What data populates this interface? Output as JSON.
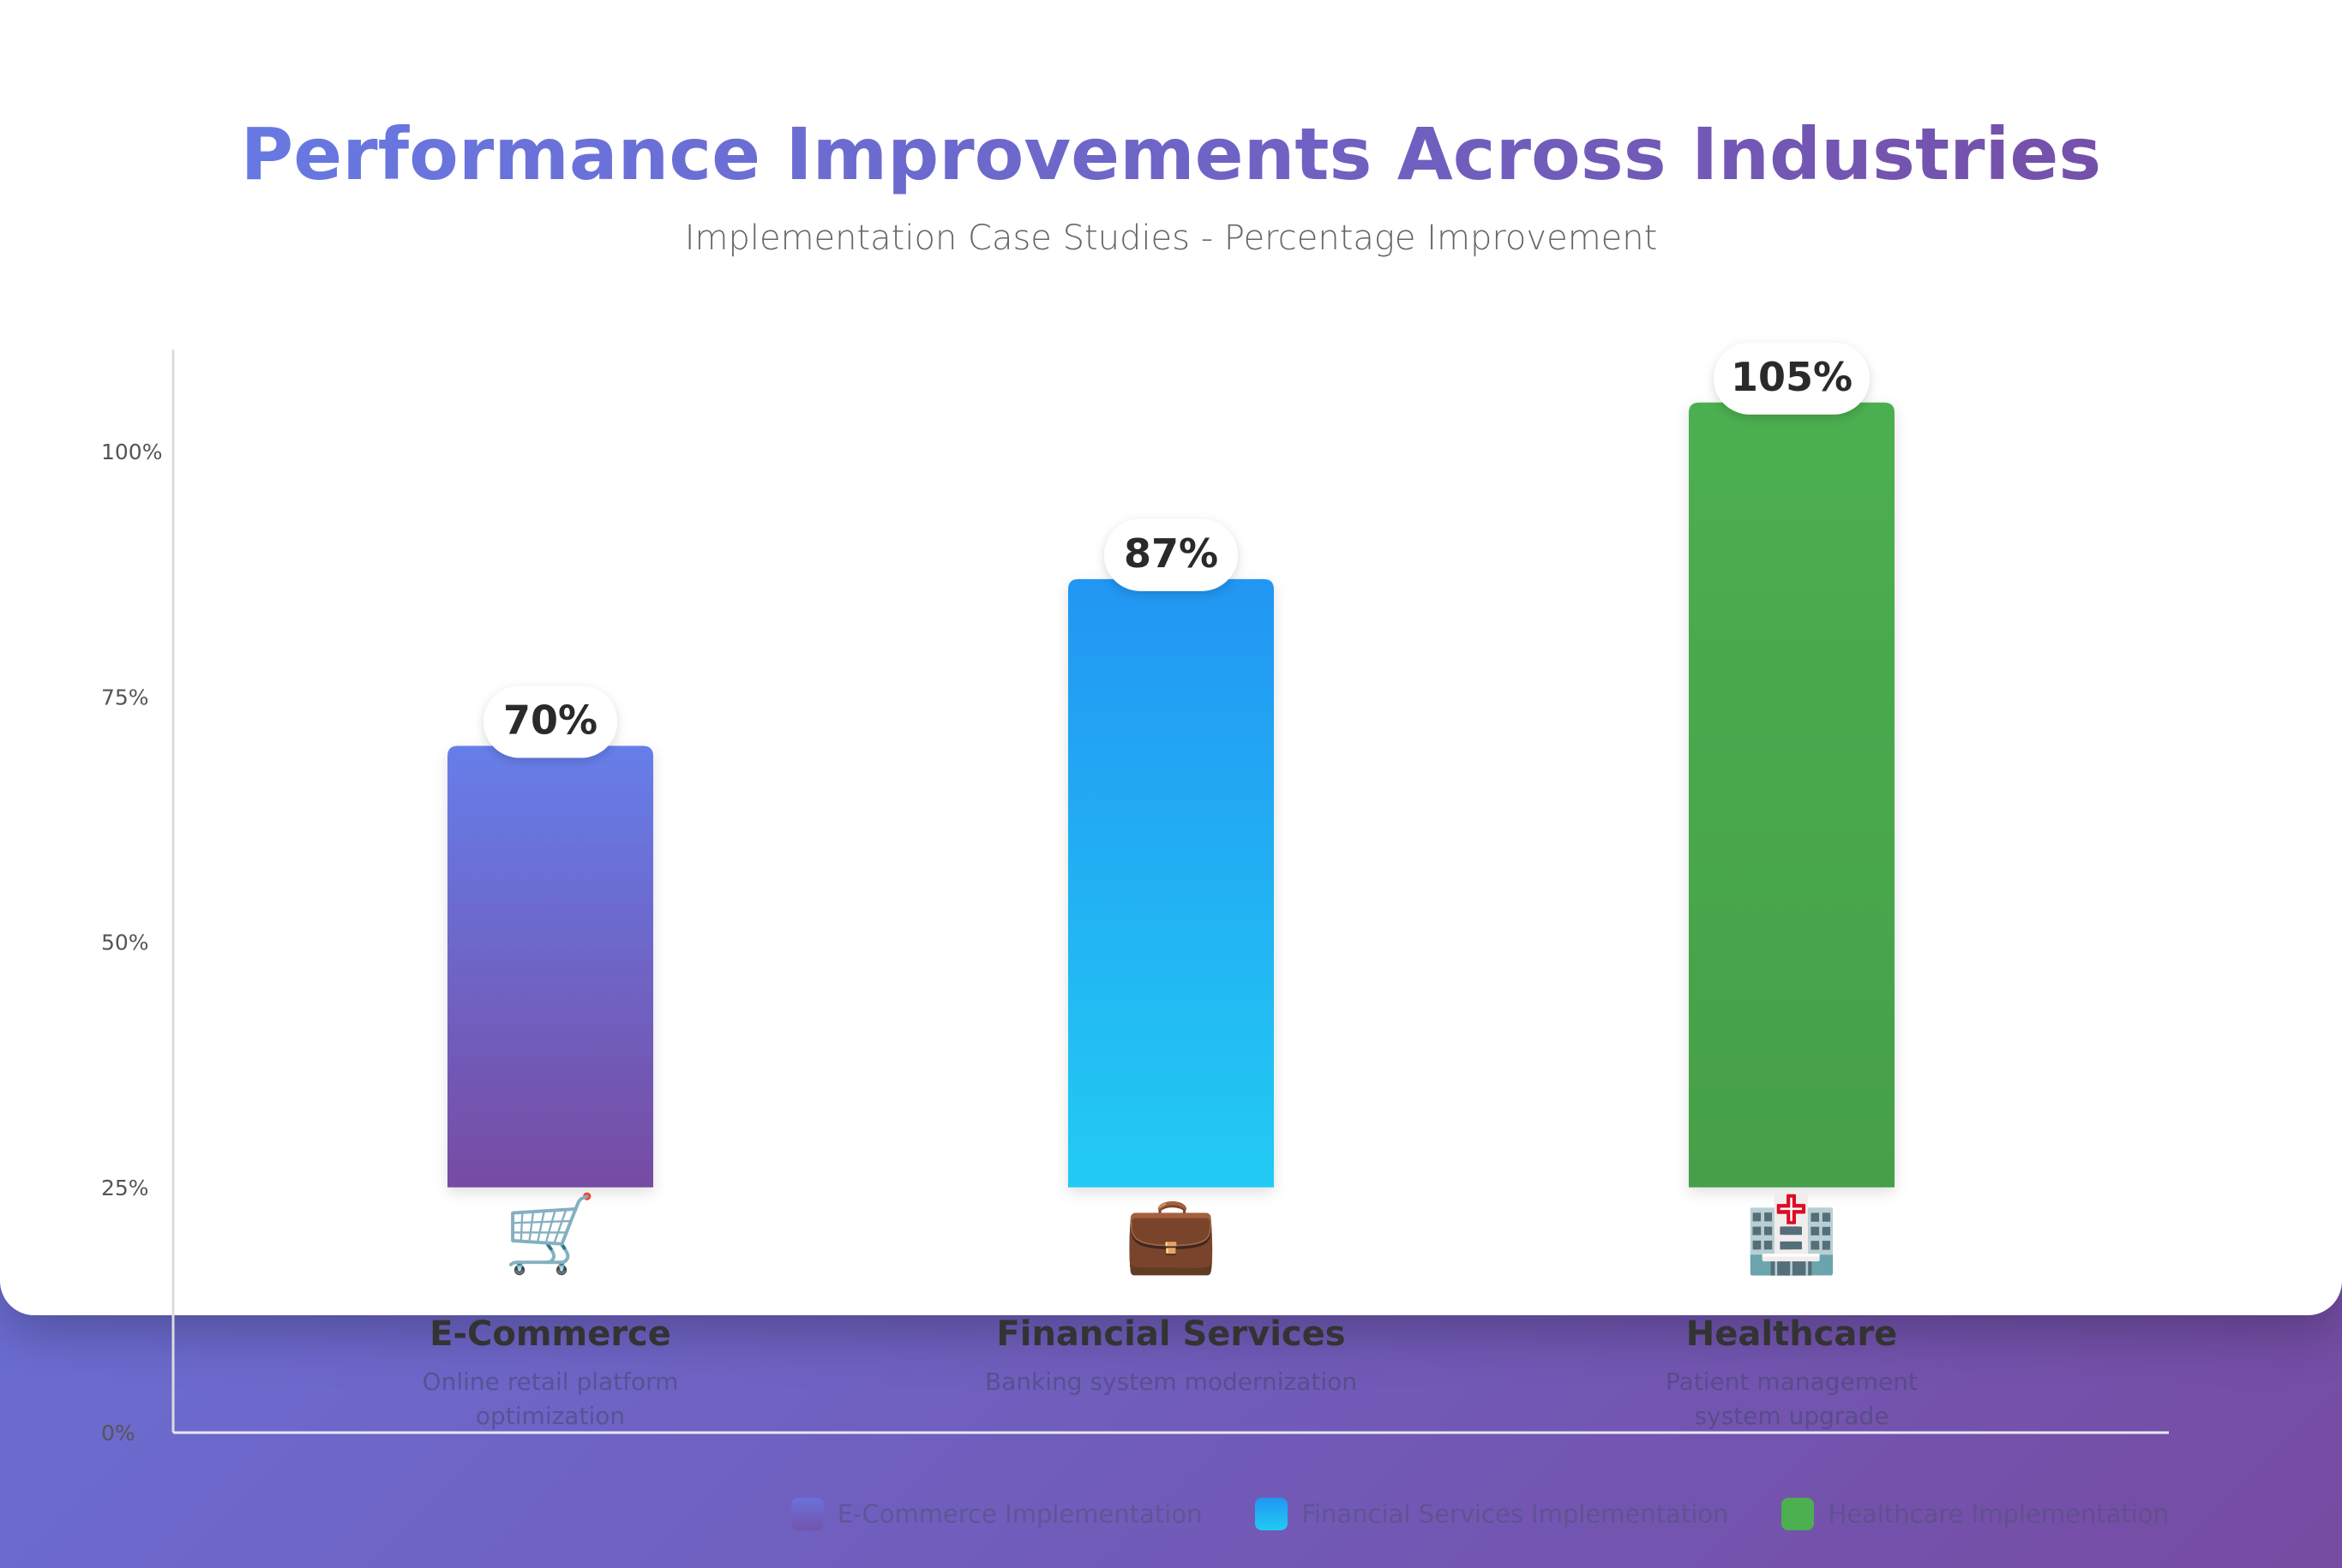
{
  "header": {
    "title": "Performance Improvements Across Industries",
    "subtitle": "Implementation Case Studies - Percentage Improvement"
  },
  "chart_data": {
    "type": "bar",
    "title": "Performance Improvements Across Industries",
    "subtitle": "Implementation Case Studies - Percentage Improvement",
    "categories": [
      "E-Commerce",
      "Financial Services",
      "Healthcare"
    ],
    "descriptions": [
      "Online retail platform optimization",
      "Banking system modernization",
      "Patient management system upgrade"
    ],
    "values": [
      70,
      87,
      105
    ],
    "value_labels": [
      "70%",
      "87%",
      "105%"
    ],
    "icons": [
      "shopping-cart-icon",
      "briefcase-icon",
      "hospital-icon"
    ],
    "icon_glyphs": [
      "🛒",
      "💼",
      "🏥"
    ],
    "y_ticks": [
      0,
      25,
      50,
      75,
      100
    ],
    "y_tick_labels": [
      "0%",
      "25%",
      "50%",
      "75%",
      "100%"
    ],
    "ylim": [
      0,
      110
    ],
    "grid": false,
    "legend_position": "bottom-right",
    "colors": [
      [
        "#667eea",
        "#764ba2"
      ],
      [
        "#2196f3",
        "#21cbf3"
      ],
      [
        "#4caf50",
        "#45a049"
      ]
    ]
  },
  "legend": [
    {
      "label": "E-Commerce Implementation",
      "color": "#6f6fd4"
    },
    {
      "label": "Financial Services Implementation",
      "color": "#2196f3"
    },
    {
      "label": "Healthcare Implementation",
      "color": "#4caf50"
    }
  ]
}
